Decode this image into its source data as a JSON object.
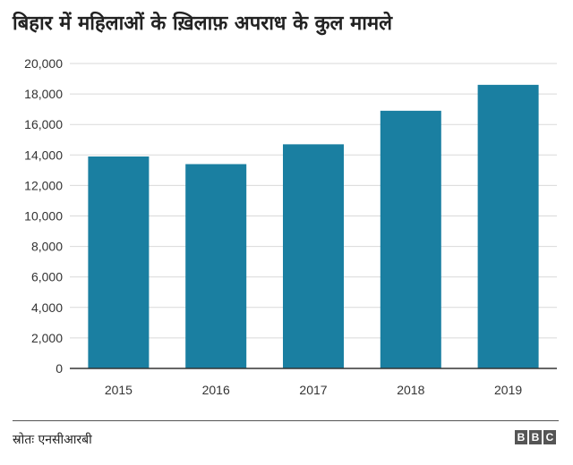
{
  "title": "बिहार में महिलाओं के ख़िलाफ़ अपराध के कुल मामले",
  "source": "स्रोतः एनसीआरबी",
  "logo": [
    "B",
    "B",
    "C"
  ],
  "colors": {
    "bar": "#1a7fa1",
    "gridline": "#d9d9d9",
    "axis": "#333333"
  },
  "chart_data": {
    "type": "bar",
    "categories": [
      "2015",
      "2016",
      "2017",
      "2018",
      "2019"
    ],
    "values": [
      13900,
      13400,
      14700,
      16900,
      18600
    ],
    "title": "बिहार में महिलाओं के ख़िलाफ़ अपराध के कुल मामले",
    "xlabel": "",
    "ylabel": "",
    "ylim": [
      0,
      20000
    ],
    "yticks": [
      "0",
      "2,000",
      "4,000",
      "6,000",
      "8,000",
      "10,000",
      "12,000",
      "14,000",
      "16,000",
      "18,000",
      "20,000"
    ],
    "grid": true,
    "legend": "none"
  }
}
